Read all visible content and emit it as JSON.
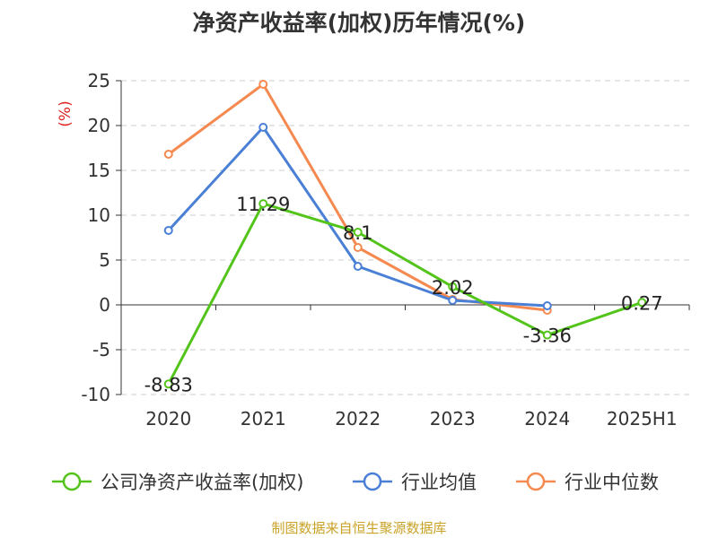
{
  "chart_data": {
    "type": "line",
    "title": "净资产收益率(加权)历年情况(%)",
    "ylabel": "(%)",
    "categories": [
      "2020",
      "2021",
      "2022",
      "2023",
      "2024",
      "2025H1"
    ],
    "ylim": [
      -10,
      25
    ],
    "yticks": [
      25,
      20,
      15,
      10,
      5,
      0,
      -5,
      -10
    ],
    "grid": true,
    "legend_position": "bottom",
    "series": [
      {
        "name": "公司净资产收益率(加权)",
        "color": "#52c41a",
        "values": [
          -8.83,
          11.29,
          8.1,
          2.02,
          -3.36,
          0.27
        ],
        "labels": true
      },
      {
        "name": "行业均值",
        "color": "#4a7fd6",
        "values": [
          8.3,
          19.8,
          4.3,
          0.5,
          -0.1,
          null
        ],
        "labels": false
      },
      {
        "name": "行业中位数",
        "color": "#f5894f",
        "values": [
          16.8,
          24.6,
          6.4,
          0.6,
          -0.6,
          null
        ],
        "labels": false
      }
    ]
  },
  "source": "制图数据来自恒生聚源数据库"
}
